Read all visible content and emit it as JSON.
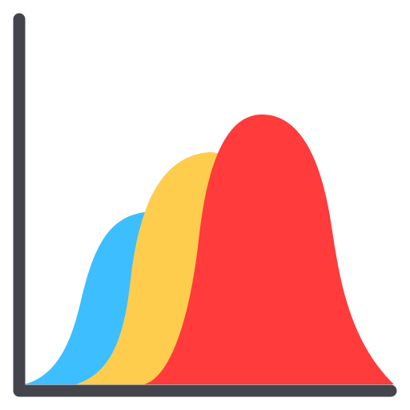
{
  "icon": {
    "name": "distribution-chart-icon",
    "axis_color": "#44444c",
    "background": "#ffffff",
    "curves": [
      {
        "name": "blue-curve",
        "color": "#3dbeff"
      },
      {
        "name": "yellow-curve",
        "color": "#ffcd4d"
      },
      {
        "name": "red-curve",
        "color": "#ff3b3b"
      }
    ]
  }
}
